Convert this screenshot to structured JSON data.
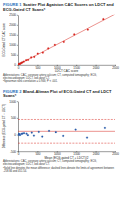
{
  "chart_data": [
    {
      "type": "scatter",
      "label": "FIGURE 1",
      "title": "Scatter Plot Agatston CAC Scores on LDCT and ECG-Gated CT Scansᵃ",
      "x_label": "LDCT CAC score",
      "y_label": "ECG-Gated CT CAC score",
      "x": [
        0,
        5,
        12,
        20,
        35,
        48,
        60,
        85,
        110,
        150,
        210,
        260,
        340,
        420,
        510,
        640,
        780,
        950,
        1180,
        1450,
        1800,
        2200
      ],
      "values": [
        0,
        3,
        15,
        18,
        40,
        55,
        52,
        95,
        120,
        160,
        230,
        250,
        370,
        400,
        560,
        610,
        820,
        1000,
        1150,
        1520,
        1760,
        2280
      ],
      "color": "#d7261e",
      "marker": "circle",
      "fit_line": {
        "x": [
          0,
          2500
        ],
        "values": [
          4,
          2530
        ],
        "color": "#d7261e",
        "line_style": "solid"
      },
      "xlim": [
        0,
        2500
      ],
      "xticks": [
        0,
        500,
        1000,
        1500,
        2000,
        2500
      ],
      "ylim": [
        0,
        2500
      ],
      "yticks": [
        0,
        500,
        1000,
        1500,
        2000,
        2500
      ],
      "grid": false,
      "footnotes": [
        "Abbreviations: CAC, coronary artery calcium; CT, computed tomography; ECG, electrocardiogram; LDCT, low-dose CT.",
        "ᵃSpearman rank correlation = 0.946; P < .001."
      ]
    },
    {
      "type": "scatter",
      "label": "FIGURE 2",
      "title": "Bland-Altman Plot of ECG-Gated CT and LDCT Scansᵃ",
      "x_label": "Mean (ECG-gated CT + LDCT)/2",
      "y_label": "Difference (ECG-gated CT − LDCT)",
      "x": [
        2,
        10,
        18,
        38,
        52,
        90,
        115,
        155,
        220,
        255,
        355,
        410,
        535,
        625,
        800,
        975,
        1165,
        1485,
        1780,
        2240
      ],
      "values": [
        5,
        -4,
        12,
        8,
        -15,
        20,
        30,
        40,
        25,
        -20,
        60,
        -30,
        80,
        -60,
        110,
        70,
        -40,
        150,
        -90,
        200
      ],
      "color": "#2a5caa",
      "marker": "circle",
      "reference_lines": [
        {
          "value": 96.35,
          "color": "#d7261e",
          "line_style": "solid"
        },
        {
          "value": -258.84,
          "color": "#d7261e",
          "line_style": "dashed"
        },
        {
          "value": 451.54,
          "color": "#d7261e",
          "line_style": "dashed"
        }
      ],
      "xlim": [
        0,
        2500
      ],
      "xticks": [
        0,
        500,
        1000,
        1500,
        2000,
        2500
      ],
      "ylim": [
        -500,
        1000
      ],
      "yticks": [
        -500,
        0,
        500,
        1000
      ],
      "grid": false,
      "footnotes": [
        "Abbreviations: CAC, coronary artery calcium; CT, computed tomography; ECG, electrocardiogram; LDCT, low-dose CT.",
        "ᵃSolid line denotes the mean difference; dashed lines denote the limits of agreement between -258.84 and 451.54."
      ]
    }
  ]
}
